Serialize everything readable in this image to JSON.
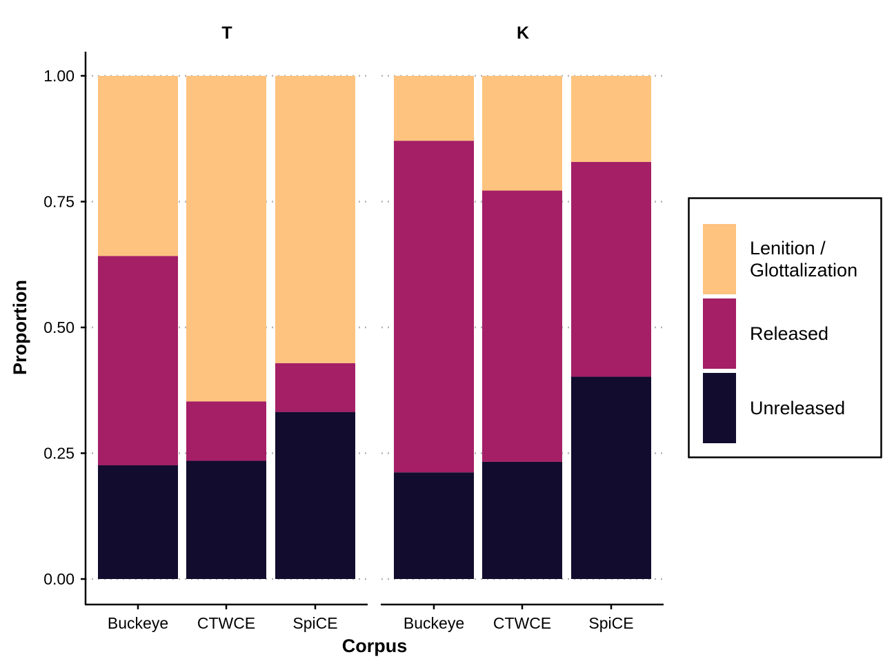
{
  "chart_data": {
    "type": "bar",
    "stacked": true,
    "xlabel": "Corpus",
    "ylabel": "Proportion",
    "ylim": [
      0,
      1
    ],
    "y_ticks": [
      "0.00",
      "0.25",
      "0.50",
      "0.75",
      "1.00"
    ],
    "y_tick_values": [
      0,
      0.25,
      0.5,
      0.75,
      1.0
    ],
    "grid": "horizontal dotted",
    "legend_position": "right",
    "categories": [
      "Buckeye",
      "CTWCE",
      "SpiCE"
    ],
    "series": [
      {
        "name": "Unreleased",
        "color": "#120c2e"
      },
      {
        "name": "Released",
        "color": "#a41f66"
      },
      {
        "name": "Lenition / Glottalization",
        "color": "#fdc37f"
      }
    ],
    "facets": [
      {
        "title": "T",
        "values": {
          "Unreleased": [
            0.226,
            0.235,
            0.332
          ],
          "Released": [
            0.416,
            0.118,
            0.097
          ],
          "Lenition / Glottalization": [
            0.358,
            0.647,
            0.571
          ]
        }
      },
      {
        "title": "K",
        "values": {
          "Unreleased": [
            0.212,
            0.233,
            0.402
          ],
          "Released": [
            0.659,
            0.539,
            0.427
          ],
          "Lenition / Glottalization": [
            0.129,
            0.228,
            0.171
          ]
        }
      }
    ]
  },
  "legend": {
    "items": [
      {
        "lines": [
          "Lenition /",
          "Glottalization"
        ],
        "color": "#fdc37f"
      },
      {
        "lines": [
          "Released"
        ],
        "color": "#a41f66"
      },
      {
        "lines": [
          "Unreleased"
        ],
        "color": "#120c2e"
      }
    ]
  }
}
